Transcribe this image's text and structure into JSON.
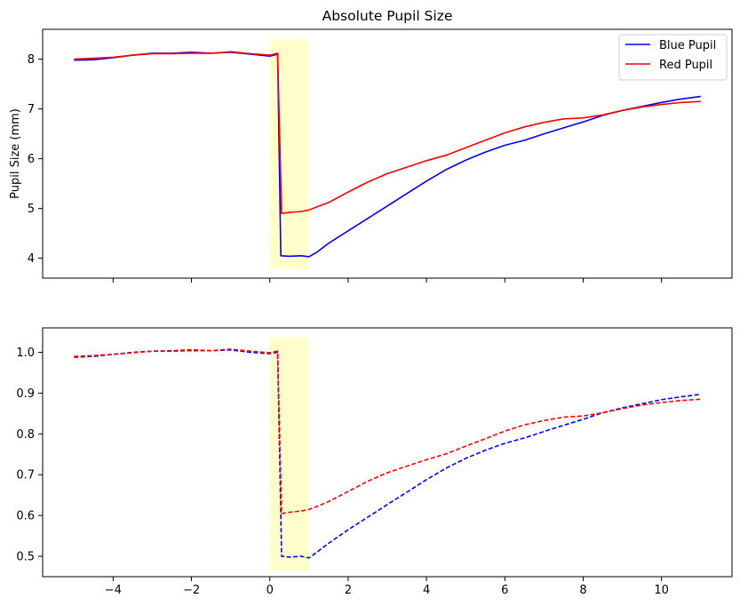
{
  "chart_data": [
    {
      "type": "line",
      "title": "Absolute Pupil Size",
      "xlabel": "",
      "ylabel": "Pupil Size (mm)",
      "xlim": [
        -5.8,
        11.8
      ],
      "ylim": [
        3.6,
        8.6
      ],
      "xticks": [
        -4,
        -2,
        0,
        2,
        4,
        6,
        8,
        10
      ],
      "xtick_labels_visible": false,
      "yticks": [
        4,
        5,
        6,
        7,
        8
      ],
      "ytick_labels": [
        "4",
        "5",
        "6",
        "7",
        "8"
      ],
      "grid": false,
      "legend": "top-right",
      "shaded_region": {
        "x": [
          0,
          1
        ],
        "y": [
          3.78,
          8.4
        ],
        "color": "#ffffcc"
      },
      "series": [
        {
          "name": "Blue Pupil",
          "color": "#0000ff",
          "style": "solid",
          "x": [
            -5.0,
            -4.5,
            -4.0,
            -3.5,
            -3.0,
            -2.5,
            -2.0,
            -1.5,
            -1.0,
            -0.5,
            0.0,
            0.2,
            0.28,
            0.5,
            0.8,
            1.0,
            1.2,
            1.5,
            2.0,
            2.5,
            3.0,
            3.5,
            4.0,
            4.5,
            5.0,
            5.5,
            6.0,
            6.5,
            7.0,
            7.5,
            8.0,
            8.5,
            9.0,
            9.5,
            10.0,
            10.5,
            11.0
          ],
          "y": [
            7.98,
            7.99,
            8.03,
            8.08,
            8.12,
            8.12,
            8.14,
            8.12,
            8.14,
            8.1,
            8.06,
            8.1,
            4.05,
            4.04,
            4.05,
            4.03,
            4.12,
            4.3,
            4.55,
            4.8,
            5.05,
            5.3,
            5.55,
            5.78,
            5.97,
            6.13,
            6.27,
            6.37,
            6.5,
            6.62,
            6.74,
            6.87,
            6.97,
            7.05,
            7.13,
            7.2,
            7.25
          ]
        },
        {
          "name": "Red Pupil",
          "color": "#ff0000",
          "style": "solid",
          "x": [
            -5.0,
            -4.5,
            -4.0,
            -3.5,
            -3.0,
            -2.5,
            -2.0,
            -1.5,
            -1.0,
            -0.5,
            0.0,
            0.2,
            0.3,
            0.5,
            0.8,
            1.0,
            1.2,
            1.5,
            2.0,
            2.5,
            3.0,
            3.5,
            4.0,
            4.5,
            5.0,
            5.5,
            6.0,
            6.5,
            7.0,
            7.5,
            8.0,
            8.5,
            9.0,
            9.5,
            10.0,
            10.5,
            11.0
          ],
          "y": [
            8.0,
            8.02,
            8.04,
            8.08,
            8.11,
            8.11,
            8.12,
            8.12,
            8.15,
            8.11,
            8.08,
            8.12,
            4.9,
            4.92,
            4.94,
            4.97,
            5.03,
            5.12,
            5.33,
            5.53,
            5.7,
            5.83,
            5.96,
            6.07,
            6.22,
            6.37,
            6.52,
            6.64,
            6.73,
            6.8,
            6.82,
            6.88,
            6.97,
            7.04,
            7.09,
            7.13,
            7.15
          ]
        }
      ]
    },
    {
      "type": "line",
      "title": "",
      "xlabel": "",
      "ylabel": "",
      "xlim": [
        -5.8,
        11.8
      ],
      "ylim": [
        0.45,
        1.06
      ],
      "xticks": [
        -4,
        -2,
        0,
        2,
        4,
        6,
        8,
        10
      ],
      "xtick_labels": [
        "−4",
        "−2",
        "0",
        "2",
        "4",
        "6",
        "8",
        "10"
      ],
      "yticks": [
        0.5,
        0.6,
        0.7,
        0.8,
        0.9,
        1.0
      ],
      "ytick_labels": [
        "0.5",
        "0.6",
        "0.7",
        "0.8",
        "0.9",
        "1.0"
      ],
      "grid": false,
      "shaded_region": {
        "x": [
          0,
          1
        ],
        "y": [
          0.465,
          1.037
        ],
        "color": "#ffffcc"
      },
      "series": [
        {
          "color": "#0000ff",
          "style": "dashed",
          "x": [
            -5.0,
            -4.5,
            -4.0,
            -3.5,
            -3.0,
            -2.5,
            -2.0,
            -1.5,
            -1.0,
            -0.5,
            0.0,
            0.2,
            0.3,
            0.5,
            0.8,
            1.0,
            1.2,
            1.5,
            2.0,
            2.5,
            3.0,
            3.5,
            4.0,
            4.5,
            5.0,
            5.5,
            6.0,
            6.5,
            7.0,
            7.5,
            8.0,
            8.5,
            9.0,
            9.5,
            10.0,
            10.5,
            11.0
          ],
          "y": [
            0.988,
            0.99,
            0.995,
            1.0,
            1.003,
            1.004,
            1.006,
            1.004,
            1.006,
            1.0,
            0.997,
            1.0,
            0.5,
            0.498,
            0.5,
            0.496,
            0.51,
            0.532,
            0.565,
            0.596,
            0.627,
            0.657,
            0.688,
            0.716,
            0.74,
            0.76,
            0.777,
            0.79,
            0.806,
            0.821,
            0.836,
            0.852,
            0.864,
            0.874,
            0.884,
            0.891,
            0.897
          ]
        },
        {
          "color": "#ff0000",
          "style": "dashed",
          "x": [
            -5.0,
            -4.5,
            -4.0,
            -3.5,
            -3.0,
            -2.5,
            -2.0,
            -1.5,
            -1.0,
            -0.5,
            0.0,
            0.2,
            0.3,
            0.5,
            0.8,
            1.0,
            1.2,
            1.5,
            2.0,
            2.5,
            3.0,
            3.5,
            4.0,
            4.5,
            5.0,
            5.5,
            6.0,
            6.5,
            7.0,
            7.5,
            8.0,
            8.5,
            9.0,
            9.5,
            10.0,
            10.5,
            11.0
          ],
          "y": [
            0.99,
            0.992,
            0.995,
            0.999,
            1.003,
            1.003,
            1.004,
            1.004,
            1.008,
            1.003,
            0.999,
            1.003,
            0.605,
            0.608,
            0.611,
            0.615,
            0.622,
            0.634,
            0.659,
            0.684,
            0.705,
            0.721,
            0.737,
            0.751,
            0.77,
            0.788,
            0.807,
            0.822,
            0.833,
            0.841,
            0.844,
            0.852,
            0.862,
            0.871,
            0.877,
            0.882,
            0.885
          ]
        }
      ]
    }
  ]
}
